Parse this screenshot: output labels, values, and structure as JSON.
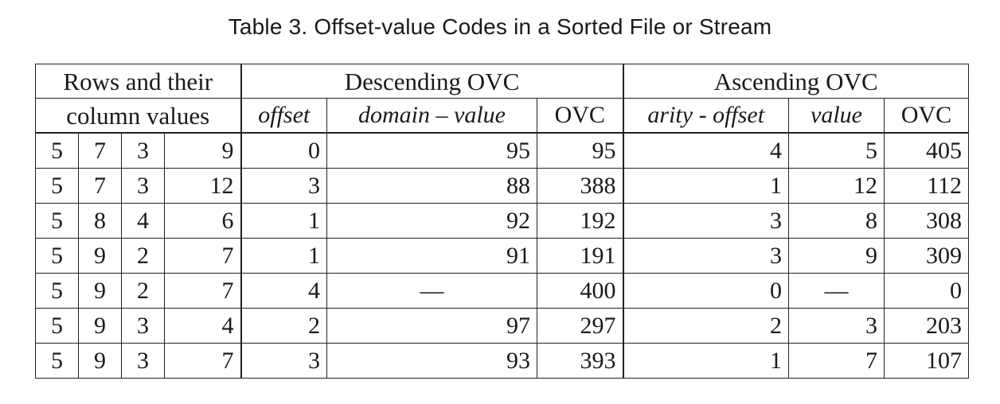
{
  "caption": "Table 3.  Offset-value Codes in a Sorted File or Stream",
  "headers": {
    "rows_group_line1": "Rows and their",
    "rows_group_line2": "column values",
    "descending_group": "Descending OVC",
    "ascending_group": "Ascending OVC",
    "desc_offset": "offset",
    "desc_domain_value": "domain – value",
    "desc_ovc": "OVC",
    "asc_arity_offset": "arity - offset",
    "asc_value": "value",
    "asc_ovc": "OVC"
  },
  "rows": [
    {
      "c1": "5",
      "c2": "7",
      "c3": "3",
      "c4": "9",
      "d_offset": "0",
      "d_dv": "95",
      "d_ovc": "95",
      "a_ao": "4",
      "a_val": "5",
      "a_ovc": "405",
      "bold": "c1"
    },
    {
      "c1": "5",
      "c2": "7",
      "c3": "3",
      "c4": "12",
      "d_offset": "3",
      "d_dv": "88",
      "d_ovc": "388",
      "a_ao": "1",
      "a_val": "12",
      "a_ovc": "112",
      "bold": "c4"
    },
    {
      "c1": "5",
      "c2": "8",
      "c3": "4",
      "c4": "6",
      "d_offset": "1",
      "d_dv": "92",
      "d_ovc": "192",
      "a_ao": "3",
      "a_val": "8",
      "a_ovc": "308",
      "bold": "c2"
    },
    {
      "c1": "5",
      "c2": "9",
      "c3": "2",
      "c4": "7",
      "d_offset": "1",
      "d_dv": "91",
      "d_ovc": "191",
      "a_ao": "3",
      "a_val": "9",
      "a_ovc": "309",
      "bold": "c2"
    },
    {
      "c1": "5",
      "c2": "9",
      "c3": "2",
      "c4": "7",
      "d_offset": "4",
      "d_dv": "—",
      "d_ovc": "400",
      "a_ao": "0",
      "a_val": "—",
      "a_ovc": "0",
      "bold": ""
    },
    {
      "c1": "5",
      "c2": "9",
      "c3": "3",
      "c4": "4",
      "d_offset": "2",
      "d_dv": "97",
      "d_ovc": "297",
      "a_ao": "2",
      "a_val": "3",
      "a_ovc": "203",
      "bold": "c3"
    },
    {
      "c1": "5",
      "c2": "9",
      "c3": "3",
      "c4": "7",
      "d_offset": "3",
      "d_dv": "93",
      "d_ovc": "393",
      "a_ao": "1",
      "a_val": "7",
      "a_ovc": "107",
      "bold": "c4"
    }
  ]
}
